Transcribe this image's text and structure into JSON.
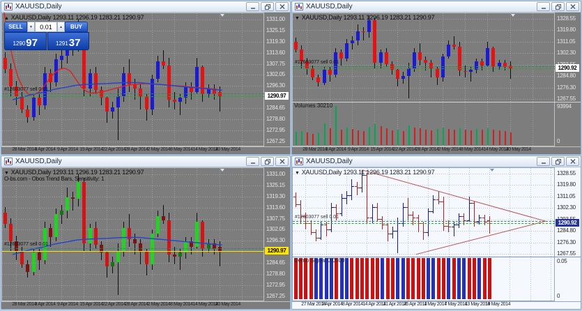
{
  "app": {
    "workspace_bg": "#b9cfe6",
    "window_title": "XAUUSD,Daily"
  },
  "trade": {
    "sell_label": "SELL",
    "buy_label": "BUY",
    "lot": "0.01",
    "step_down_icon": "▼",
    "step_up_icon": "▲",
    "sell_price_main": "1290",
    "sell_price_frac": "97",
    "buy_price_main": "1291",
    "buy_price_frac": "37",
    "open_label": "#12603077 sell 0.01"
  },
  "windows": [
    {
      "id": "top-left",
      "title": "XAUUSD,Daily",
      "arrow": "▲",
      "ohlc_text": "XAUUSD,Daily  1293.11 1296.19 1283.21 1290.97",
      "price_tag": "1290.97"
    },
    {
      "id": "top-right",
      "title": "XAUUSD,Daily",
      "arrow": "▼",
      "ohlc_text": "XAUUSD,Daily  1293.11 1296.19 1283.21 1290.97",
      "price_tag": "1290.92",
      "sub_label": "Volumes 30210",
      "sub_max": "93994",
      "sub_min": "0"
    },
    {
      "id": "bottom-left",
      "title": "XAUUSD,Daily",
      "arrow": "▼",
      "ohlc_text": "XAUUSD,Daily  1293.11 1296.19 1283.21 1290.97",
      "price_tag": "1290.97",
      "indicator_caption": "O-bs.com - Obos Trend Bars, Sensitivity: 1"
    },
    {
      "id": "bottom-right",
      "title": "XAUUSD,Daily",
      "arrow": "▼",
      "ohlc_text": "XAUUSD,Daily  1293.11 1296.19 1283.21 1290.97",
      "price_tag": "1290.92",
      "sub_label": "Demo Signal 0.0500",
      "sub_max": "0.05",
      "sub_min": "0"
    }
  ],
  "panels": [
    {
      "bg": "gray",
      "candle_style": "candle",
      "sub": null,
      "span": 0.84,
      "range": [
        1334.2,
        1265.0
      ],
      "ticks": "left",
      "dates": "left",
      "ma": [
        "red",
        "blue"
      ],
      "triangle": false,
      "yellow_line": false,
      "current_line": true,
      "open_label": true,
      "tag": "white",
      "trade_panel": true
    },
    {
      "bg": "gray",
      "candle_style": "candle",
      "sub": "volume",
      "span": 0.84,
      "range": [
        1332.5,
        1265.5
      ],
      "ticks": "right",
      "dates": "left",
      "ma": [],
      "triangle": false,
      "yellow_line": false,
      "current_line": true,
      "open_label": true,
      "tag": "white",
      "trade_panel": false
    },
    {
      "bg": "gray",
      "candle_style": "trendbar",
      "sub": null,
      "span": 0.84,
      "range": [
        1334.2,
        1265.0
      ],
      "ticks": "left",
      "dates": "left",
      "ma": [
        "blue"
      ],
      "triangle": false,
      "yellow_line": true,
      "current_line": false,
      "open_label": true,
      "tag": "yellow",
      "trade_panel": false
    },
    {
      "bg": "light",
      "candle_style": "bar",
      "sub": "signal",
      "span": 0.76,
      "range": [
        1332.5,
        1265.5
      ],
      "ticks": "right",
      "dates": "right",
      "ma": [],
      "triangle": true,
      "yellow_line": false,
      "current_line": true,
      "open_label": true,
      "tag": "navy",
      "trade_panel": false
    }
  ],
  "style": {
    "gray_grid": "rgba(255,255,255,0.28)",
    "light_grid": "rgba(110,140,190,0.5)",
    "gray_axis_text": "#e4e4e4",
    "light_axis_text": "#2a2a2a",
    "date_text": "#1f1f1f",
    "up_blue": "#1b1bd4",
    "down_red": "#e41212",
    "wick": "#101010",
    "bl_up_bright": "#21d421",
    "bl_up_dark": "#117711",
    "bl_down_bright": "#d41414",
    "bl_down_dark": "#7d1414",
    "bar_up_navy": "#16169c",
    "bar_down_red": "#b22222",
    "vol_up": "#00a84f",
    "vol_down": "#d02020",
    "sig_red": "#cc1111",
    "sig_blue": "#2431b8",
    "triangle": "#c05050",
    "current_line": "#2fa12f",
    "open_line": "#2e8b57",
    "yellow_line": "#ffe400",
    "ma_red": "#e02020",
    "ma_blue": "#2244cc",
    "tag_white_bg": "#ffffff",
    "tag_navy_bg": "#25349c",
    "tag_yellow_bg": "#ffe400"
  },
  "chart_data": {
    "type": "candlestick",
    "symbol": "XAUUSD",
    "timeframe": "Daily",
    "ohlc_header": {
      "open": 1293.11,
      "high": 1296.19,
      "low": 1283.21,
      "close": 1290.97
    },
    "current_bid": 1290.97,
    "open_trade_price": 1292.4,
    "candles": [
      [
        1311,
        1314,
        1303,
        1305
      ],
      [
        1305,
        1308,
        1291,
        1296
      ],
      [
        1296,
        1299,
        1286,
        1291
      ],
      [
        1291,
        1293,
        1282,
        1284
      ],
      [
        1284,
        1286,
        1277,
        1280
      ],
      [
        1280,
        1292,
        1278,
        1290
      ],
      [
        1290,
        1292,
        1281,
        1286
      ],
      [
        1286,
        1306,
        1284,
        1303
      ],
      [
        1303,
        1305,
        1293,
        1298
      ],
      [
        1298,
        1313,
        1296,
        1310
      ],
      [
        1310,
        1315,
        1305,
        1312
      ],
      [
        1312,
        1324,
        1308,
        1319
      ],
      [
        1319,
        1322,
        1312,
        1318
      ],
      [
        1318,
        1331,
        1314,
        1327
      ],
      [
        1327,
        1329,
        1291,
        1295
      ],
      [
        1295,
        1305,
        1291,
        1303
      ],
      [
        1303,
        1306,
        1292,
        1294
      ],
      [
        1294,
        1296,
        1286,
        1290
      ],
      [
        1290,
        1291,
        1277,
        1283
      ],
      [
        1283,
        1288,
        1279,
        1285
      ],
      [
        1285,
        1295,
        1268,
        1291
      ],
      [
        1291,
        1306,
        1288,
        1303
      ],
      [
        1303,
        1310,
        1293,
        1297
      ],
      [
        1297,
        1300,
        1289,
        1295
      ],
      [
        1295,
        1297,
        1284,
        1291
      ],
      [
        1291,
        1292,
        1278,
        1284
      ],
      [
        1284,
        1302,
        1281,
        1300
      ],
      [
        1300,
        1312,
        1298,
        1309
      ],
      [
        1309,
        1315,
        1305,
        1307
      ],
      [
        1307,
        1311,
        1285,
        1289
      ],
      [
        1289,
        1293,
        1284,
        1288
      ],
      [
        1288,
        1292,
        1281,
        1290
      ],
      [
        1290,
        1298,
        1287,
        1296
      ],
      [
        1296,
        1298,
        1289,
        1293
      ],
      [
        1293,
        1311,
        1292,
        1306
      ],
      [
        1306,
        1307,
        1288,
        1292
      ],
      [
        1292,
        1297,
        1290,
        1295
      ],
      [
        1295,
        1297,
        1289,
        1292
      ],
      [
        1293,
        1296,
        1283,
        1291
      ]
    ],
    "label_indices": [
      2,
      6,
      10,
      14,
      18,
      22,
      26,
      30,
      34,
      38
    ],
    "dates_left": [
      "28 Mar 2014",
      "3 Apr 2014",
      "9 Apr 2014",
      "15 Apr 2014",
      "22 Apr 2014",
      "28 Apr 2014",
      "2 May 2014",
      "8 May 2014",
      "14 May 2014",
      "20 May 2014"
    ],
    "dates_right": [
      "27 Mar 2014",
      "2 Apr 2014",
      "8 Apr 2014",
      "14 Apr 2014",
      "21 Apr 2014",
      "25 Apr 2014",
      "1 May 2014",
      "7 May 2014",
      "13 May 2014",
      "19 May 2014"
    ],
    "yticks_left": [
      "1331.00",
      "1325.15",
      "1319.30",
      "1313.60",
      "1307.75",
      "1302.05",
      "1296.30",
      "1284.65",
      "1278.80",
      "1272.95",
      "1267.25"
    ],
    "yticks_right": [
      "1328.55",
      "1319.80",
      "1311.05",
      "1302.30",
      "1293.55",
      "1284.80",
      "1276.30",
      "1267.55"
    ],
    "volumes": [
      31000,
      34000,
      29500,
      27500,
      30500,
      52000,
      40000,
      93994,
      36000,
      41000,
      39000,
      35500,
      33500,
      43000,
      50000,
      45000,
      39500,
      35000,
      37000,
      34000,
      46000,
      41000,
      39500,
      37500,
      35500,
      39000,
      41500,
      38500,
      36500,
      40500,
      37500,
      35500,
      38500,
      36500,
      39500,
      37500,
      35500,
      33500,
      30210
    ],
    "volume_scale": {
      "max": "93994",
      "min": "0"
    },
    "signal_colors": [
      "r",
      "r",
      "r",
      "r",
      "b",
      "b",
      "b",
      "b",
      "r",
      "b",
      "b",
      "r",
      "r",
      "r",
      "r",
      "r",
      "r",
      "b",
      "r",
      "r",
      "b",
      "b",
      "r",
      "r",
      "r",
      "r",
      "b",
      "b",
      "r",
      "r",
      "b",
      "r",
      "b",
      "b",
      "r",
      "r",
      "b",
      "r",
      "r"
    ],
    "signal_scale": {
      "max": "0.05",
      "min": "0"
    },
    "ma_red": [
      [
        0,
        1341
      ],
      [
        2,
        1325
      ],
      [
        4,
        1311
      ],
      [
        6,
        1301
      ],
      [
        8,
        1295
      ],
      [
        10,
        1292
      ],
      [
        12,
        1291.5
      ],
      [
        14,
        1293
      ],
      [
        16,
        1296
      ],
      [
        18,
        1300
      ],
      [
        20,
        1303
      ],
      [
        22,
        1305
      ],
      [
        24,
        1305.5
      ],
      [
        26,
        1304
      ],
      [
        28,
        1300
      ],
      [
        30,
        1296
      ],
      [
        32,
        1293.5
      ],
      [
        34,
        1292.5
      ],
      [
        38,
        1293
      ],
      [
        42,
        1294.5
      ],
      [
        46,
        1296
      ],
      [
        50,
        1297
      ],
      [
        55,
        1297.5
      ],
      [
        60,
        1297
      ],
      [
        65,
        1296.5
      ],
      [
        70,
        1296
      ],
      [
        74,
        1295.5
      ],
      [
        78,
        1295
      ],
      [
        81,
        1294.5
      ],
      [
        84,
        1294
      ]
    ],
    "ma_blue": [
      [
        4,
        1289
      ],
      [
        8,
        1290.5
      ],
      [
        12,
        1292
      ],
      [
        16,
        1293
      ],
      [
        20,
        1294.5
      ],
      [
        24,
        1295.5
      ],
      [
        28,
        1296.5
      ],
      [
        32,
        1297
      ],
      [
        36,
        1297.3
      ],
      [
        40,
        1297.5
      ],
      [
        44,
        1297.8
      ],
      [
        48,
        1298
      ],
      [
        52,
        1298
      ],
      [
        56,
        1297.5
      ],
      [
        60,
        1297
      ],
      [
        64,
        1296.5
      ],
      [
        68,
        1296
      ],
      [
        72,
        1295.5
      ],
      [
        76,
        1295
      ],
      [
        80,
        1294.5
      ],
      [
        84,
        1294
      ]
    ],
    "triangle_upper": [
      [
        26.5,
        1331
      ],
      [
        96.5,
        1292.3
      ]
    ],
    "triangle_lower": [
      [
        47,
        1267.2
      ],
      [
        96.5,
        1292.3
      ]
    ]
  }
}
